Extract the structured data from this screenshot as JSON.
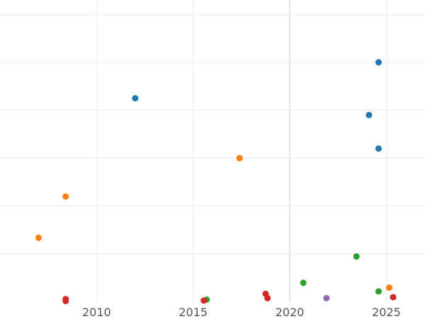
{
  "chart_data": {
    "type": "scatter",
    "title": "",
    "xlabel": "",
    "ylabel": "",
    "xlim": [
      2005,
      2027.0
    ],
    "ylim": [
      0,
      6.3
    ],
    "x_ticks": [
      2010,
      2015,
      2020,
      2025
    ],
    "x_tick_labels": [
      "2010",
      "2015",
      "2020",
      "2025"
    ],
    "y_gridlines": [
      1,
      2,
      3,
      4,
      5,
      6
    ],
    "grid": true,
    "legend": "none",
    "series": [
      {
        "color": "#1f77b4",
        "points": [
          {
            "x": 2012.0,
            "y": 4.25
          },
          {
            "x": 2024.6,
            "y": 5.0
          },
          {
            "x": 2024.1,
            "y": 3.9
          },
          {
            "x": 2024.6,
            "y": 3.2
          }
        ]
      },
      {
        "color": "#ff7f0e",
        "points": [
          {
            "x": 2017.4,
            "y": 3.0
          },
          {
            "x": 2008.4,
            "y": 2.2
          },
          {
            "x": 2007.0,
            "y": 1.34
          },
          {
            "x": 2025.15,
            "y": 0.3
          }
        ]
      },
      {
        "color": "#2ca02c",
        "points": [
          {
            "x": 2023.45,
            "y": 0.95
          },
          {
            "x": 2020.7,
            "y": 0.4
          },
          {
            "x": 2024.6,
            "y": 0.22
          },
          {
            "x": 2015.7,
            "y": 0.05
          }
        ]
      },
      {
        "color": "#d62728",
        "points": [
          {
            "x": 2008.4,
            "y": 0.06
          },
          {
            "x": 2008.4,
            "y": 0.02
          },
          {
            "x": 2015.55,
            "y": 0.03
          },
          {
            "x": 2018.75,
            "y": 0.17
          },
          {
            "x": 2018.85,
            "y": 0.08
          },
          {
            "x": 2025.35,
            "y": 0.1
          }
        ]
      },
      {
        "color": "#9467bd",
        "points": [
          {
            "x": 2021.9,
            "y": 0.08
          }
        ]
      }
    ]
  }
}
